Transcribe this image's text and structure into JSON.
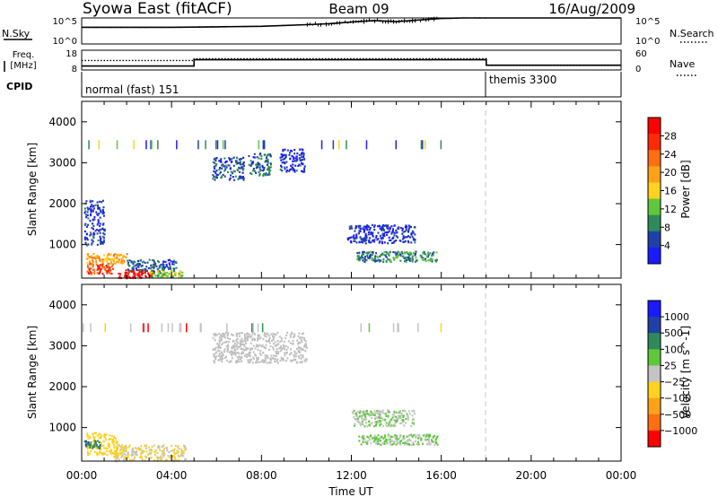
{
  "header": {
    "station": "Syowa East (fitACF)",
    "beam": "Beam 09",
    "date": "16/Aug/2009"
  },
  "noise_panel": {
    "left_label": "N.Sky",
    "left_ticks": [
      "10^5",
      "10^0"
    ],
    "right_ticks": [
      "10^5",
      "10^0"
    ],
    "right_label": "N.Search"
  },
  "freq_panel": {
    "left_label_line1": "Freq.",
    "left_label_line2": "[MHz]",
    "left_ticks": [
      "18",
      "8"
    ],
    "right_ticks": [
      "60",
      "0"
    ],
    "right_label": "Nave"
  },
  "cpid_panel": {
    "label": "CPID",
    "modes": [
      {
        "name": "normal (fast) 151",
        "start_hour": 0,
        "end_hour": 18
      },
      {
        "name": "themis 3300",
        "start_hour": 18,
        "end_hour": 24
      }
    ]
  },
  "time_axis": {
    "label": "Time UT",
    "ticks": [
      "00:00",
      "04:00",
      "08:00",
      "12:00",
      "16:00",
      "20:00",
      "00:00"
    ]
  },
  "colors": {
    "power": [
      "#1a1aff",
      "#2040a8",
      "#2f8a5a",
      "#5ec83a",
      "#ffd21f",
      "#ffa219",
      "#ff6e10",
      "#ff2a0a",
      "#ff0000"
    ],
    "velocity": [
      "#1a1aff",
      "#2040a8",
      "#2f8a5a",
      "#5ec83a",
      "#c4c4c4",
      "#ffd21f",
      "#ffa219",
      "#ff6e10",
      "#ff0000"
    ],
    "ground_scatter": "#c0c0c0"
  },
  "chart_data": [
    {
      "type": "line",
      "title": "N.Sky",
      "x_range_hours": [
        0,
        24
      ],
      "y_scale": "log",
      "ylim": [
        "10^0",
        "10^5"
      ],
      "series": [
        {
          "name": "N.Sky",
          "x": [
            0,
            2,
            4,
            6,
            8,
            10,
            11,
            12,
            13,
            14,
            15,
            16,
            17,
            18,
            24
          ],
          "log10_y": [
            3.2,
            3.2,
            3.2,
            3.3,
            3.4,
            3.7,
            3.9,
            4.2,
            4.5,
            4.3,
            4.6,
            4.9,
            5.0,
            5.0,
            5.0
          ]
        }
      ]
    },
    {
      "type": "line",
      "title": "Freq. [MHz] / Nave",
      "x_range_hours": [
        0,
        24
      ],
      "ylim_freq": [
        8,
        18
      ],
      "ylim_nave": [
        0,
        60
      ],
      "series": [
        {
          "name": "Freq.",
          "x": [
            0,
            5,
            5,
            18,
            18,
            24
          ],
          "y": [
            10,
            10,
            13.2,
            13.2,
            10.4,
            10.4
          ]
        },
        {
          "name": "Nave",
          "x": [
            0,
            5,
            5,
            18,
            18,
            24
          ],
          "y": [
            29,
            29,
            34,
            34,
            14,
            14
          ]
        }
      ]
    },
    {
      "type": "heatmap",
      "ylabel": "Slant Range [km]",
      "xlabel": "",
      "x_range_hours": [
        0,
        24
      ],
      "ylim": [
        180,
        4500
      ],
      "y_ticks": [
        1000,
        2000,
        3000,
        4000
      ],
      "colorbar": {
        "label": "Power [dB]",
        "ticks": [
          "4",
          "8",
          "12",
          "16",
          "20",
          "24",
          "28"
        ],
        "range": [
          0,
          30
        ]
      },
      "patches": [
        {
          "x": [
            0.2,
            1.4
          ],
          "y": [
            300,
            550
          ],
          "value": 24
        },
        {
          "x": [
            0.2,
            2.0
          ],
          "y": [
            550,
            800
          ],
          "value": 18
        },
        {
          "x": [
            1.6,
            3.2
          ],
          "y": [
            200,
            400
          ],
          "value": 29
        },
        {
          "x": [
            3.0,
            4.5
          ],
          "y": [
            230,
            380
          ],
          "value": 12
        },
        {
          "x": [
            0.1,
            1.0
          ],
          "y": [
            1000,
            2100
          ],
          "value": 4
        },
        {
          "x": [
            2.0,
            4.2
          ],
          "y": [
            380,
            650
          ],
          "value": 6
        },
        {
          "x": [
            5.8,
            7.2
          ],
          "y": [
            2600,
            3150
          ],
          "value": 5
        },
        {
          "x": [
            7.4,
            8.4
          ],
          "y": [
            2700,
            3250
          ],
          "value": 6
        },
        {
          "x": [
            8.8,
            9.9
          ],
          "y": [
            2800,
            3350
          ],
          "value": 3
        },
        {
          "x": [
            11.8,
            14.8
          ],
          "y": [
            1050,
            1500
          ],
          "value": 3
        },
        {
          "x": [
            12.2,
            15.8
          ],
          "y": [
            600,
            850
          ],
          "value": 8
        }
      ]
    },
    {
      "type": "heatmap",
      "ylabel": "Slant Range [km]",
      "xlabel": "Time UT",
      "x_range_hours": [
        0,
        24
      ],
      "ylim": [
        180,
        4500
      ],
      "y_ticks": [
        1000,
        2000,
        3000,
        4000
      ],
      "colorbar": {
        "label": "Velocity [m s^-1]",
        "ticks": [
          "1000",
          "500",
          "100",
          "25",
          "−25",
          "−100",
          "−500",
          "−1000"
        ],
        "range": [
          -1200,
          1200
        ]
      },
      "patches": [
        {
          "x": [
            0.2,
            1.6
          ],
          "y": [
            350,
            900
          ],
          "value": -300
        },
        {
          "x": [
            1.4,
            4.6
          ],
          "y": [
            200,
            600
          ],
          "value": -150
        },
        {
          "x": [
            0.1,
            0.8
          ],
          "y": [
            500,
            700
          ],
          "value": 600
        },
        {
          "x": [
            5.8,
            10.0
          ],
          "y": [
            2600,
            3350
          ],
          "value": 0,
          "ground_scatter": true
        },
        {
          "x": [
            12.0,
            14.8
          ],
          "y": [
            1050,
            1450
          ],
          "value": 120
        },
        {
          "x": [
            12.3,
            15.8
          ],
          "y": [
            600,
            850
          ],
          "value": 140
        }
      ]
    }
  ]
}
